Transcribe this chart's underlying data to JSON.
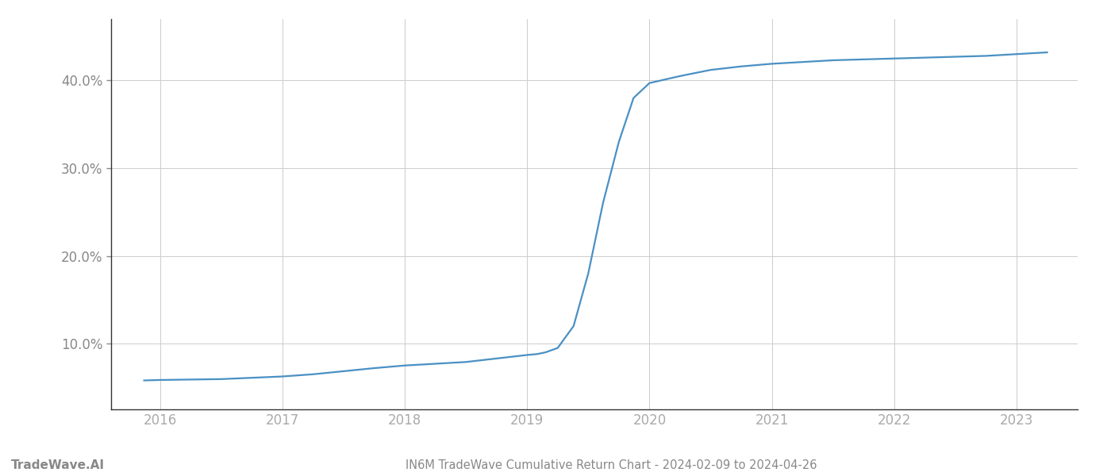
{
  "title": "IN6M TradeWave Cumulative Return Chart - 2024-02-09 to 2024-04-26",
  "watermark": "TradeWave.AI",
  "line_color": "#4a90c4",
  "background_color": "#ffffff",
  "grid_color": "#cccccc",
  "x_values": [
    2015.87,
    2016.0,
    2016.25,
    2016.5,
    2016.75,
    2017.0,
    2017.25,
    2017.5,
    2017.75,
    2018.0,
    2018.25,
    2018.5,
    2018.75,
    2019.0,
    2019.08,
    2019.15,
    2019.25,
    2019.38,
    2019.5,
    2019.62,
    2019.75,
    2019.87,
    2020.0,
    2020.25,
    2020.5,
    2020.75,
    2021.0,
    2021.25,
    2021.5,
    2021.75,
    2022.0,
    2022.25,
    2022.5,
    2022.75,
    2023.0,
    2023.25
  ],
  "y_values": [
    5.8,
    5.85,
    5.9,
    5.95,
    6.1,
    6.25,
    6.5,
    6.85,
    7.2,
    7.5,
    7.7,
    7.9,
    8.3,
    8.7,
    8.8,
    9.0,
    9.5,
    12.0,
    18.0,
    26.0,
    33.0,
    38.0,
    39.7,
    40.5,
    41.2,
    41.6,
    41.9,
    42.1,
    42.3,
    42.4,
    42.5,
    42.6,
    42.7,
    42.8,
    43.0,
    43.2
  ],
  "yticks": [
    10.0,
    20.0,
    30.0,
    40.0
  ],
  "xticks": [
    2016,
    2017,
    2018,
    2019,
    2020,
    2021,
    2022,
    2023
  ],
  "xlim": [
    2015.6,
    2023.5
  ],
  "ylim": [
    2.5,
    47.0
  ],
  "title_fontsize": 10.5,
  "watermark_fontsize": 11,
  "tick_fontsize": 12,
  "line_width": 1.6,
  "spine_color": "#333333",
  "ytick_color": "#888888",
  "xtick_color": "#aaaaaa"
}
